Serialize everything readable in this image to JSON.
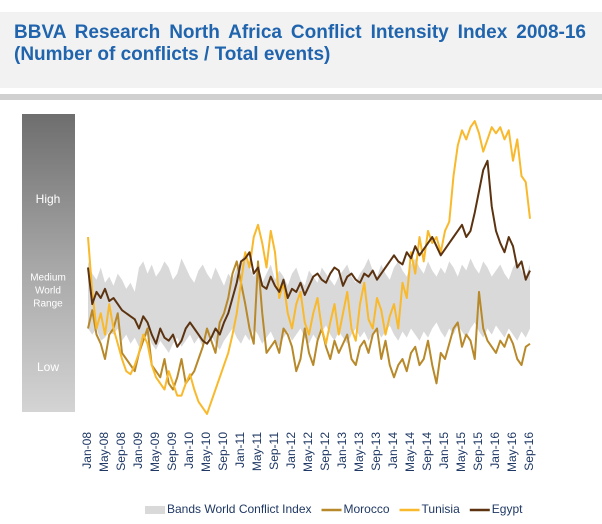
{
  "chart_data": {
    "type": "line",
    "title": "BBVA Research North Africa Conflict Intensity Index 2008-16 (Number of conflicts / Total events)",
    "side_labels": [
      "High",
      "Medium",
      "World",
      "Range",
      "Low"
    ],
    "categories": [
      "Jan-08",
      null,
      null,
      null,
      "May-08",
      null,
      null,
      null,
      "Sep-08",
      null,
      null,
      null,
      "Jan-09",
      null,
      null,
      null,
      "May-09",
      null,
      null,
      null,
      "Sep-09",
      null,
      null,
      null,
      "Jan-10",
      null,
      null,
      null,
      "May-10",
      null,
      null,
      null,
      "Sep-10",
      null,
      null,
      null,
      "Jan-11",
      null,
      null,
      null,
      "May-11",
      null,
      null,
      null,
      "Sep-11",
      null,
      null,
      null,
      "Jan-12",
      null,
      null,
      null,
      "May-12",
      null,
      null,
      null,
      "Sep-12",
      null,
      null,
      null,
      "Jan-13",
      null,
      null,
      null,
      "May-13",
      null,
      null,
      null,
      "Sep-13",
      null,
      null,
      null,
      "Jan-14",
      null,
      null,
      null,
      "May-14",
      null,
      null,
      null,
      "Sep-14",
      null,
      null,
      null,
      "Jan-15",
      null,
      null,
      null,
      "May-15",
      null,
      null,
      null,
      "Sep-15",
      null,
      null,
      null,
      "Jan-16",
      null,
      null,
      null,
      "May-16",
      null,
      null,
      null,
      "Sep-16"
    ],
    "ylim": [
      0,
      100
    ],
    "series": [
      {
        "name": "Bands World Conflict Index",
        "color": "#d9d9d9",
        "upper": [
          52,
          48,
          46,
          50,
          45,
          47,
          44,
          48,
          46,
          43,
          45,
          42,
          50,
          52,
          48,
          51,
          47,
          49,
          52,
          50,
          46,
          48,
          53,
          50,
          47,
          45,
          49,
          51,
          48,
          46,
          50,
          47,
          44,
          48,
          46,
          50,
          52,
          55,
          50,
          47,
          49,
          45,
          48,
          51,
          46,
          49,
          47,
          44,
          48,
          50,
          46,
          44,
          49,
          47,
          45,
          50,
          48,
          46,
          44,
          47,
          49,
          51,
          47,
          45,
          48,
          50,
          53,
          49,
          47,
          51,
          48,
          46,
          50,
          52,
          49,
          47,
          51,
          53,
          50,
          48,
          52,
          49,
          47,
          50,
          48,
          52,
          50,
          47,
          51,
          49,
          53,
          50,
          48,
          52,
          50,
          47,
          49,
          51,
          48,
          46,
          50,
          52,
          49,
          47,
          51
        ],
        "lower": [
          30,
          28,
          30,
          26,
          27,
          29,
          28,
          30,
          26,
          28,
          25,
          27,
          24,
          26,
          28,
          25,
          23,
          26,
          24,
          22,
          25,
          27,
          24,
          26,
          28,
          25,
          27,
          24,
          26,
          28,
          25,
          23,
          26,
          28,
          30,
          27,
          25,
          28,
          26,
          30,
          28,
          25,
          27,
          29,
          26,
          24,
          27,
          29,
          26,
          28,
          30,
          27,
          25,
          28,
          26,
          29,
          31,
          28,
          26,
          29,
          27,
          25,
          28,
          30,
          27,
          29,
          26,
          28,
          30,
          27,
          29,
          31,
          28,
          26,
          29,
          27,
          30,
          28,
          26,
          29,
          27,
          30,
          32,
          29,
          27,
          30,
          28,
          31,
          29,
          27,
          30,
          32,
          29,
          27,
          30,
          28,
          31,
          29,
          27,
          30,
          28,
          26,
          29,
          27,
          30
        ]
      },
      {
        "name": "Morocco",
        "color": "#b8892a",
        "values": [
          30,
          36,
          28,
          25,
          20,
          28,
          30,
          35,
          22,
          20,
          18,
          16,
          22,
          26,
          30,
          18,
          16,
          14,
          20,
          12,
          10,
          14,
          20,
          12,
          14,
          16,
          20,
          24,
          30,
          26,
          22,
          32,
          35,
          40,
          48,
          52,
          45,
          38,
          30,
          25,
          52,
          35,
          22,
          24,
          26,
          22,
          30,
          28,
          24,
          16,
          20,
          30,
          22,
          18,
          26,
          30,
          24,
          20,
          26,
          22,
          25,
          28,
          20,
          18,
          24,
          26,
          22,
          28,
          30,
          20,
          26,
          18,
          14,
          18,
          20,
          16,
          22,
          24,
          18,
          20,
          26,
          18,
          12,
          22,
          20,
          25,
          30,
          32,
          24,
          28,
          26,
          20,
          42,
          30,
          26,
          24,
          22,
          26,
          24,
          28,
          25,
          20,
          18,
          24,
          25
        ]
      },
      {
        "name": "Tunisia",
        "color": "#f9b92c",
        "values": [
          60,
          42,
          30,
          35,
          28,
          38,
          30,
          25,
          20,
          16,
          15,
          18,
          22,
          28,
          25,
          18,
          14,
          12,
          10,
          16,
          12,
          8,
          8,
          12,
          15,
          10,
          6,
          4,
          2,
          6,
          10,
          14,
          18,
          22,
          28,
          35,
          45,
          55,
          50,
          60,
          64,
          58,
          50,
          62,
          55,
          40,
          45,
          35,
          30,
          38,
          42,
          32,
          28,
          35,
          40,
          30,
          25,
          32,
          38,
          28,
          35,
          42,
          30,
          26,
          38,
          45,
          33,
          30,
          40,
          36,
          28,
          34,
          38,
          30,
          45,
          40,
          55,
          48,
          60,
          52,
          62,
          58,
          60,
          55,
          62,
          65,
          80,
          90,
          95,
          92,
          96,
          98,
          94,
          88,
          92,
          96,
          94,
          96,
          92,
          95,
          85,
          92,
          80,
          78,
          66
        ]
      },
      {
        "name": "Egypt",
        "color": "#5c3311",
        "values": [
          50,
          38,
          42,
          40,
          43,
          39,
          40,
          38,
          36,
          35,
          34,
          33,
          30,
          34,
          32,
          28,
          25,
          30,
          27,
          26,
          28,
          24,
          26,
          30,
          32,
          30,
          28,
          26,
          25,
          27,
          30,
          28,
          32,
          35,
          40,
          45,
          52,
          53,
          55,
          48,
          50,
          44,
          43,
          47,
          44,
          42,
          46,
          40,
          43,
          42,
          45,
          41,
          44,
          47,
          48,
          46,
          45,
          48,
          50,
          49,
          44,
          47,
          48,
          46,
          45,
          48,
          47,
          49,
          46,
          48,
          50,
          52,
          54,
          52,
          51,
          55,
          53,
          57,
          54,
          56,
          58,
          60,
          57,
          54,
          56,
          58,
          60,
          62,
          64,
          60,
          62,
          68,
          75,
          82,
          85,
          70,
          62,
          58,
          55,
          60,
          57,
          50,
          52,
          46,
          49
        ]
      }
    ]
  }
}
